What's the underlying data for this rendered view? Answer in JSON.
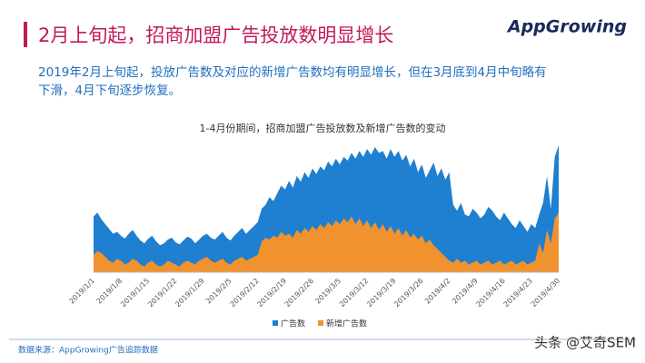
{
  "slide": {
    "title": "2月上旬起，招商加盟广告投放数明显增长",
    "logo": "AppGrowing",
    "subtitle_line1": "2019年2月上旬起，投放广告数及对应的新增广告数均有明显增长，但在3月底到4月中旬略有",
    "subtitle_line2": "下滑，4月下旬逐步恢复。",
    "source": "数据来源：AppGrowing广告追踪数据",
    "watermark": "头条 @艾奇SEM"
  },
  "chart_data": {
    "type": "area",
    "title": "1-4月份期间，招商加盟广告投放数及新增广告数的变动",
    "categories": [
      "2019/1/1",
      null,
      null,
      null,
      null,
      null,
      null,
      "2019/1/8",
      null,
      null,
      null,
      null,
      null,
      null,
      "2019/1/15",
      null,
      null,
      null,
      null,
      null,
      null,
      "2019/1/22",
      null,
      null,
      null,
      null,
      null,
      null,
      "2019/1/29",
      null,
      null,
      null,
      null,
      null,
      null,
      "2019/2/5",
      null,
      null,
      null,
      null,
      null,
      null,
      "2019/2/12",
      null,
      null,
      null,
      null,
      null,
      null,
      "2019/2/19",
      null,
      null,
      null,
      null,
      null,
      null,
      "2019/2/26",
      null,
      null,
      null,
      null,
      null,
      null,
      "2019/3/5",
      null,
      null,
      null,
      null,
      null,
      null,
      "2019/3/12",
      null,
      null,
      null,
      null,
      null,
      null,
      "2019/3/19",
      null,
      null,
      null,
      null,
      null,
      null,
      "2019/3/26",
      null,
      null,
      null,
      null,
      null,
      null,
      "2019/4/2",
      null,
      null,
      null,
      null,
      null,
      null,
      "2019/4/9",
      null,
      null,
      null,
      null,
      null,
      null,
      "2019/4/16",
      null,
      null,
      null,
      null,
      null,
      null,
      "2019/4/23",
      null,
      null,
      null,
      null,
      null,
      null,
      "2019/4/30"
    ],
    "series": [
      {
        "name": "广告数",
        "color": "#1f7fd1",
        "values": [
          58,
          62,
          55,
          50,
          45,
          40,
          42,
          38,
          35,
          40,
          44,
          38,
          33,
          30,
          35,
          38,
          32,
          28,
          30,
          34,
          36,
          31,
          29,
          33,
          37,
          35,
          30,
          34,
          38,
          40,
          36,
          34,
          38,
          42,
          36,
          33,
          38,
          42,
          46,
          40,
          44,
          48,
          52,
          66,
          70,
          78,
          74,
          82,
          90,
          86,
          95,
          88,
          100,
          94,
          104,
          98,
          108,
          102,
          110,
          106,
          115,
          110,
          118,
          112,
          120,
          116,
          124,
          118,
          126,
          120,
          128,
          122,
          130,
          124,
          126,
          118,
          128,
          120,
          126,
          116,
          122,
          110,
          118,
          104,
          112,
          98,
          106,
          114,
          100,
          108,
          96,
          104,
          70,
          64,
          72,
          60,
          58,
          66,
          62,
          56,
          60,
          68,
          64,
          58,
          54,
          62,
          56,
          50,
          46,
          54,
          48,
          42,
          50,
          46,
          60,
          72,
          100,
          66,
          120,
          132
        ]
      },
      {
        "name": "新增广告数",
        "color": "#f0922e",
        "values": [
          18,
          22,
          20,
          16,
          12,
          10,
          14,
          12,
          8,
          10,
          14,
          12,
          8,
          6,
          10,
          12,
          8,
          6,
          8,
          12,
          10,
          8,
          6,
          10,
          12,
          10,
          8,
          12,
          14,
          16,
          12,
          10,
          12,
          14,
          10,
          8,
          12,
          14,
          16,
          12,
          14,
          16,
          18,
          32,
          36,
          34,
          38,
          36,
          42,
          38,
          40,
          36,
          44,
          40,
          46,
          42,
          48,
          44,
          50,
          46,
          52,
          48,
          54,
          50,
          56,
          52,
          58,
          50,
          56,
          48,
          54,
          46,
          52,
          44,
          50,
          42,
          48,
          40,
          46,
          38,
          44,
          36,
          40,
          34,
          38,
          30,
          34,
          28,
          24,
          20,
          16,
          12,
          10,
          14,
          10,
          12,
          8,
          10,
          12,
          8,
          10,
          12,
          8,
          10,
          12,
          8,
          10,
          12,
          8,
          10,
          12,
          8,
          10,
          12,
          30,
          20,
          44,
          30,
          56,
          62
        ]
      }
    ]
  }
}
